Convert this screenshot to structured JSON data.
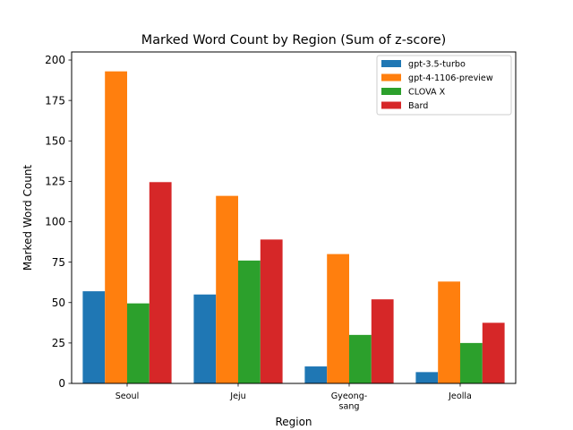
{
  "chart_data": {
    "type": "bar",
    "title": "Marked Word Count by Region (Sum of z-score)",
    "xlabel": "Region",
    "ylabel": "Marked Word Count",
    "categories": [
      [
        "Seoul"
      ],
      [
        "Jeju"
      ],
      [
        "Gyeong-",
        "sang"
      ],
      [
        "Jeolla"
      ]
    ],
    "ylim": [
      0,
      205
    ],
    "yticks": [
      0,
      25,
      50,
      75,
      100,
      125,
      150,
      175,
      200
    ],
    "grid": false,
    "legend_position": "top-right",
    "series": [
      {
        "name": "gpt-3.5-turbo",
        "color": "#1f77b4",
        "values": [
          57,
          55,
          10.5,
          7
        ]
      },
      {
        "name": "gpt-4-1106-preview",
        "color": "#ff7f0e",
        "values": [
          193,
          116,
          80,
          63
        ]
      },
      {
        "name": "CLOVA X",
        "color": "#2ca02c",
        "values": [
          49.5,
          76,
          30,
          25
        ]
      },
      {
        "name": "Bard",
        "color": "#d62728",
        "values": [
          124.5,
          89,
          52,
          37.5
        ]
      }
    ]
  }
}
